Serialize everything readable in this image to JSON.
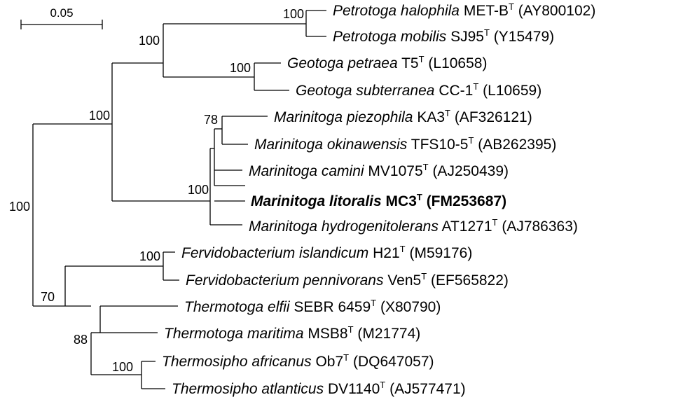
{
  "scale_bar": {
    "label": "0.05"
  },
  "bootstrap": {
    "petrotoga": "100",
    "petrotoga_geotoga": "100",
    "geotoga": "100",
    "outer_ingroup": "100",
    "marinitoga_inner": "78",
    "marinitoga": "100",
    "root": "100",
    "fervido": "100",
    "thermo_outer": "70",
    "thermotoga_thermosipho": "88",
    "thermosipho": "100"
  },
  "taxa": [
    {
      "genus_species": "Petrotoga halophila",
      "strain": "MET-B",
      "sup": "T",
      "accession": "(AY800102)",
      "bold": false
    },
    {
      "genus_species": "Petrotoga mobilis",
      "strain": "SJ95",
      "sup": "T",
      "accession": "(Y15479)",
      "bold": false
    },
    {
      "genus_species": "Geotoga petraea",
      "strain": "T5",
      "sup": "T",
      "accession": "(L10658)",
      "bold": false
    },
    {
      "genus_species": "Geotoga subterranea",
      "strain": "CC-1",
      "sup": "T",
      "accession": "(L10659)",
      "bold": false
    },
    {
      "genus_species": "Marinitoga piezophila",
      "strain": "KA3",
      "sup": "T",
      "accession": "(AF326121)",
      "bold": false
    },
    {
      "genus_species": "Marinitoga okinawensis",
      "strain": "TFS10-5",
      "sup": "T",
      "accession": "(AB262395)",
      "bold": false
    },
    {
      "genus_species": "Marinitoga camini",
      "strain": "MV1075",
      "sup": "T",
      "accession": "(AJ250439)",
      "bold": false
    },
    {
      "genus_species": "Marinitoga litoralis",
      "strain": "MC3",
      "sup": "T",
      "accession": "(FM253687)",
      "bold": true
    },
    {
      "genus_species": "Marinitoga hydrogenitolerans",
      "strain": "AT1271",
      "sup": "T",
      "accession": "(AJ786363)",
      "bold": false
    },
    {
      "genus_species": "Fervidobacterium islandicum",
      "strain": "H21",
      "sup": "T",
      "accession": "(M59176)",
      "bold": false
    },
    {
      "genus_species": "Fervidobacterium pennivorans",
      "strain": "Ven5",
      "sup": "T",
      "accession": "(EF565822)",
      "bold": false
    },
    {
      "genus_species": "Thermotoga elfii",
      "strain": "SEBR 6459",
      "sup": "T",
      "accession": "(X80790)",
      "bold": false
    },
    {
      "genus_species": "Thermotoga maritima",
      "strain": "MSB8",
      "sup": "T",
      "accession": "(M21774)",
      "bold": false
    },
    {
      "genus_species": "Thermosipho africanus",
      "strain": "Ob7",
      "sup": "T",
      "accession": "(DQ647057)",
      "bold": false
    },
    {
      "genus_species": "Thermosipho atlanticus",
      "strain": "DV1140",
      "sup": "T",
      "accession": "(AJ577471)",
      "bold": false
    }
  ]
}
